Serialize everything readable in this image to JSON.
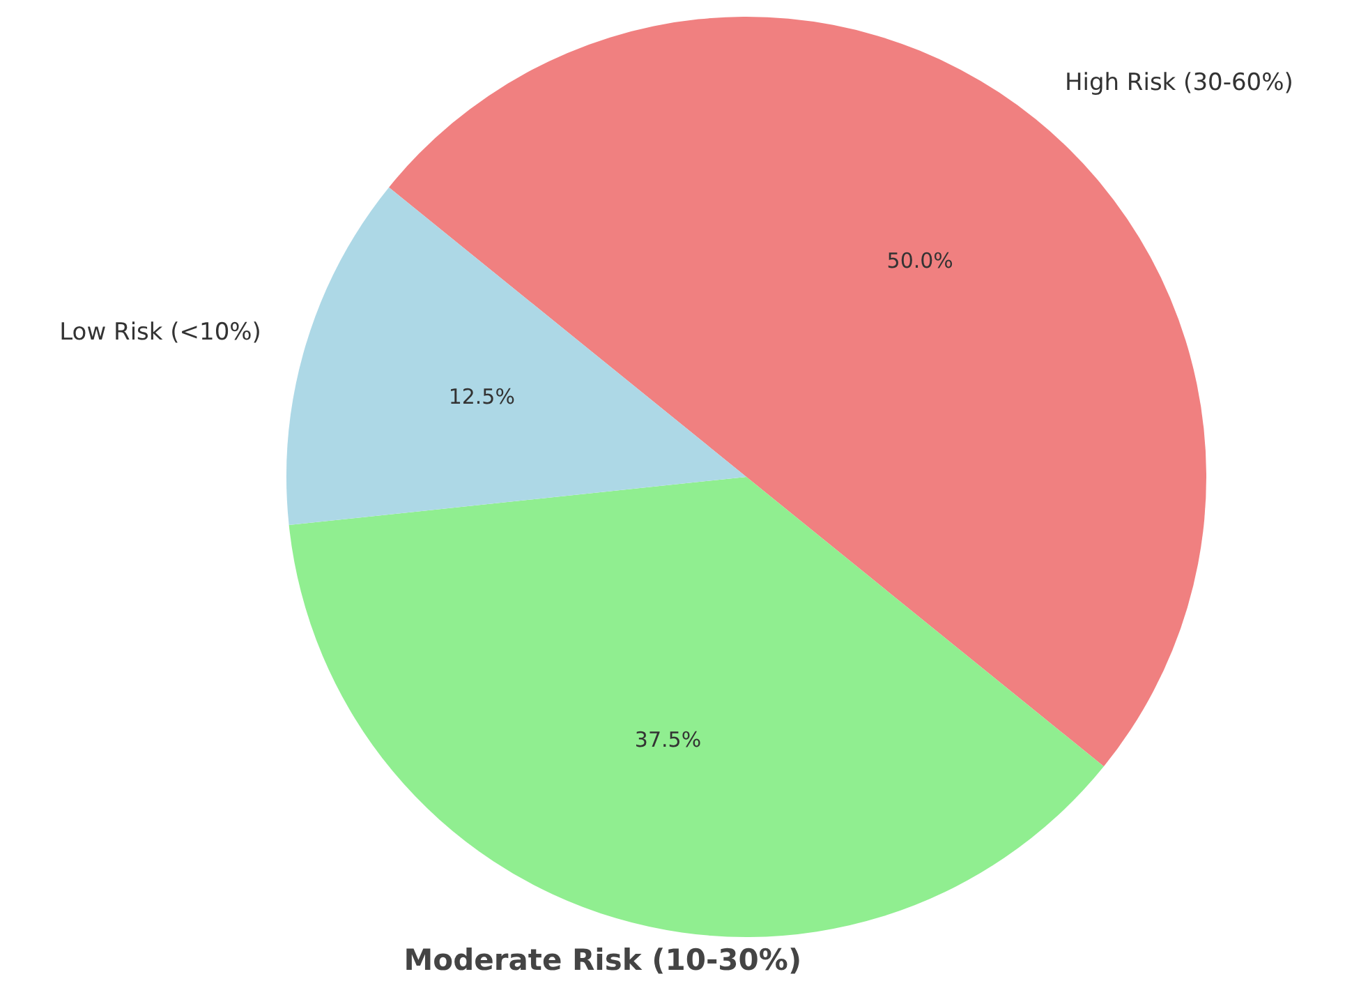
{
  "chart_data": {
    "type": "pie",
    "categories": [
      "High Risk (30-60%)",
      "Moderate Risk (10-30%)",
      "Low Risk (<10%)"
    ],
    "values": [
      50.0,
      37.5,
      12.5
    ],
    "colors": [
      "#f08080",
      "#90ee90",
      "#add8e6"
    ],
    "value_labels": [
      "50.0%",
      "37.5%",
      "12.5%"
    ],
    "legend": false
  }
}
